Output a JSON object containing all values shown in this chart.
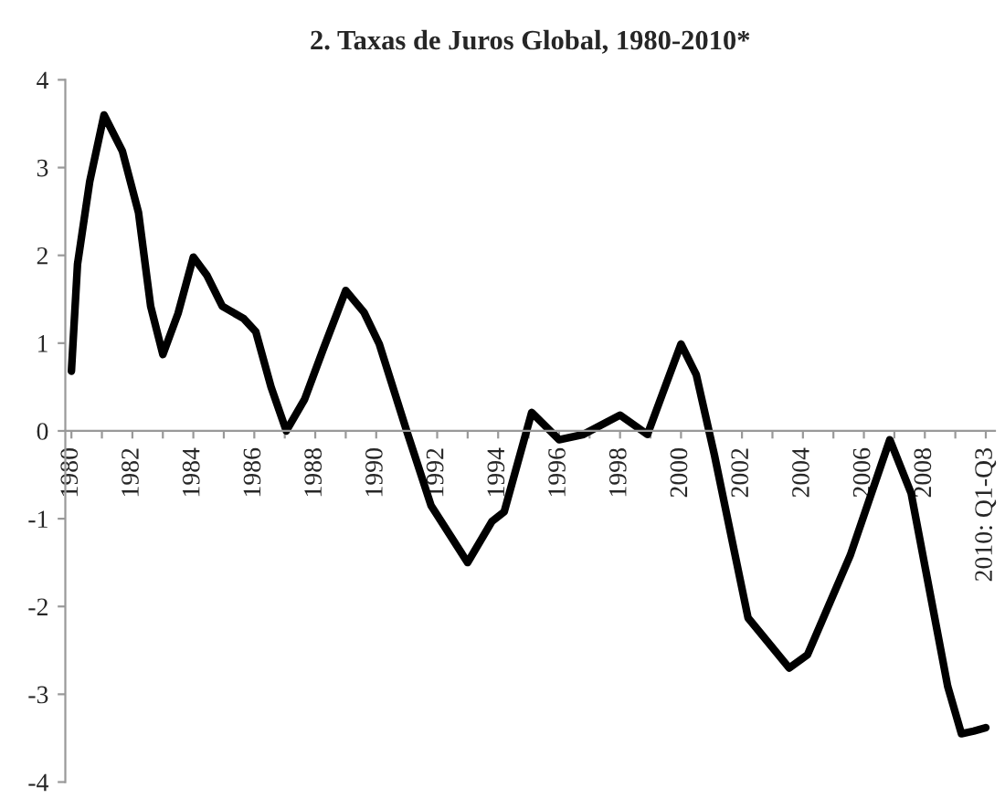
{
  "chart_data": {
    "type": "line",
    "title": "2. Taxas de Juros Global, 1980-2010*",
    "x": [
      1980.0,
      1980.2,
      1980.6,
      1981.07,
      1981.67,
      1982.2,
      1982.6,
      1983.0,
      1983.5,
      1984.0,
      1984.45,
      1984.95,
      1985.65,
      1986.05,
      1986.55,
      1987.05,
      1987.65,
      1988.25,
      1989.0,
      1989.6,
      1990.1,
      1991.0,
      1991.8,
      1993.0,
      1993.8,
      1994.2,
      1995.1,
      1996.0,
      1996.8,
      1998.0,
      1998.9,
      1999.4,
      2000.0,
      2000.5,
      2001.1,
      2002.2,
      2003.55,
      2004.15,
      2005.55,
      2006.85,
      2007.55,
      2008.75,
      2009.2,
      2009.6,
      2010.0
    ],
    "series": [
      {
        "color": "#000000",
        "values": [
          0.68,
          1.9,
          2.84,
          3.6,
          3.19,
          2.49,
          1.42,
          0.87,
          1.34,
          1.98,
          1.77,
          1.42,
          1.28,
          1.13,
          0.5,
          0.0,
          0.36,
          0.92,
          1.6,
          1.35,
          0.99,
          0.0,
          -0.85,
          -1.5,
          -1.03,
          -0.92,
          0.21,
          -0.1,
          -0.04,
          0.18,
          -0.04,
          0.43,
          0.99,
          0.64,
          -0.28,
          -2.13,
          -2.7,
          -2.55,
          -1.42,
          -0.1,
          -0.71,
          -2.91,
          -3.45,
          -3.42,
          -3.38
        ]
      }
    ],
    "xlim": [
      1979.8,
      2010.3
    ],
    "xticks": [
      {
        "value": 1980,
        "label": "1980"
      },
      {
        "value": 1981,
        "label": null
      },
      {
        "value": 1982,
        "label": "1982"
      },
      {
        "value": 1983,
        "label": null
      },
      {
        "value": 1984,
        "label": "1984"
      },
      {
        "value": 1985,
        "label": null
      },
      {
        "value": 1986,
        "label": "1986"
      },
      {
        "value": 1987,
        "label": null
      },
      {
        "value": 1988,
        "label": "1988"
      },
      {
        "value": 1989,
        "label": null
      },
      {
        "value": 1990,
        "label": "1990"
      },
      {
        "value": 1991,
        "label": null
      },
      {
        "value": 1992,
        "label": "1992"
      },
      {
        "value": 1993,
        "label": null
      },
      {
        "value": 1994,
        "label": "1994"
      },
      {
        "value": 1995,
        "label": null
      },
      {
        "value": 1996,
        "label": "1996"
      },
      {
        "value": 1997,
        "label": null
      },
      {
        "value": 1998,
        "label": "1998"
      },
      {
        "value": 1999,
        "label": null
      },
      {
        "value": 2000,
        "label": "2000"
      },
      {
        "value": 2001,
        "label": null
      },
      {
        "value": 2002,
        "label": "2002"
      },
      {
        "value": 2003,
        "label": null
      },
      {
        "value": 2004,
        "label": "2004"
      },
      {
        "value": 2005,
        "label": null
      },
      {
        "value": 2006,
        "label": "2006"
      },
      {
        "value": 2007,
        "label": null
      },
      {
        "value": 2008,
        "label": "2008"
      },
      {
        "value": 2009,
        "label": null
      },
      {
        "value": 2010,
        "label": "2010: Q1-Q3"
      }
    ],
    "ylim": [
      -4,
      4
    ],
    "yticks": [
      -4,
      -3,
      -2,
      -1,
      0,
      1,
      2,
      3,
      4
    ],
    "grid": false,
    "legend": false,
    "marker": "none",
    "line_style": "solid"
  }
}
